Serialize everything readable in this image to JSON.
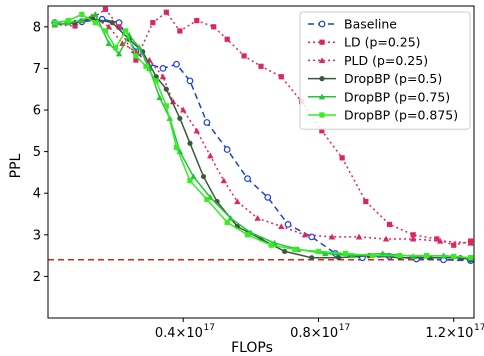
{
  "chart_data": {
    "type": "line",
    "title": "",
    "xlabel": "FLOPs",
    "ylabel": "PPL",
    "xlim": [
      0.0,
      1.26e+17
    ],
    "ylim": [
      1.0,
      8.5
    ],
    "xticks": [
      {
        "value": 4e+16,
        "mantissa": "0.4",
        "base": "×10",
        "exp": "17"
      },
      {
        "value": 8e+16,
        "mantissa": "0.8",
        "base": "×10",
        "exp": "17"
      },
      {
        "value": 1.2e+17,
        "mantissa": "1.2",
        "base": "×10",
        "exp": "17"
      }
    ],
    "yticks": [
      2,
      3,
      4,
      5,
      6,
      7,
      8
    ],
    "grid": false,
    "legend_position": "top-right",
    "reference_line": {
      "y": 2.4,
      "color": "#e02020",
      "style": "dashed"
    },
    "series": [
      {
        "name": "Baseline",
        "color": "#1a3de0",
        "dash": "6,4",
        "marker": "circle-open",
        "x": [
          2000000000000000.0,
          1e+16,
          1.6e+16,
          2.1e+16,
          2.6e+16,
          3e+16,
          3.4e+16,
          3.8e+16,
          4.2e+16,
          4.7e+16,
          5.3e+16,
          5.9e+16,
          6.5e+16,
          7.1e+16,
          7.8e+16,
          8.5e+16,
          9.3e+16,
          1.01e+17,
          1.09e+17,
          1.17e+17,
          1.25e+17
        ],
        "y": [
          8.1,
          8.12,
          8.18,
          8.1,
          7.4,
          7.1,
          7.0,
          7.1,
          6.7,
          5.7,
          5.05,
          4.35,
          3.9,
          3.25,
          2.95,
          2.55,
          2.45,
          2.48,
          2.42,
          2.4,
          2.38
        ]
      },
      {
        "name": "LD (p=0.25)",
        "color": "#e0245e",
        "dash": "2,3",
        "marker": "square",
        "x": [
          2000000000000000.0,
          8000000000000000.0,
          1.3e+16,
          1.7e+16,
          2.1e+16,
          2.6e+16,
          3.1e+16,
          3.5e+16,
          3.9e+16,
          4.4e+16,
          4.9e+16,
          5.3e+16,
          5.8e+16,
          6.3e+16,
          6.9e+16,
          7.5e+16,
          8.1e+16,
          8.7e+16,
          9.4e+16,
          1.01e+17,
          1.08e+17,
          1.15e+17,
          1.2e+17,
          1.25e+17
        ],
        "y": [
          8.05,
          8.02,
          8.2,
          8.42,
          8.0,
          7.2,
          8.1,
          8.35,
          7.9,
          8.15,
          8.0,
          7.7,
          7.3,
          7.05,
          6.8,
          6.2,
          5.5,
          4.85,
          3.8,
          3.25,
          3.0,
          2.9,
          2.75,
          2.85
        ]
      },
      {
        "name": "PLD (p=0.25)",
        "color": "#e0245e",
        "dash": "2,3",
        "marker": "triangle",
        "x": [
          2000000000000000.0,
          8000000000000000.0,
          1.3e+16,
          1.8e+16,
          2.2e+16,
          2.6e+16,
          3e+16,
          3.4e+16,
          3.7e+16,
          4e+16,
          4.4e+16,
          4.8e+16,
          5.2e+16,
          5.6e+16,
          6.2e+16,
          6.9e+16,
          7.6e+16,
          8.4e+16,
          9.2e+16,
          1e+17,
          1.08e+17,
          1.16e+17,
          1.25e+17
        ],
        "y": [
          8.05,
          8.1,
          8.25,
          8.0,
          7.6,
          7.4,
          7.2,
          6.8,
          6.2,
          6.0,
          5.5,
          4.9,
          4.3,
          3.8,
          3.4,
          3.2,
          3.0,
          2.95,
          2.95,
          2.9,
          2.9,
          2.85,
          2.8
        ]
      },
      {
        "name": "DropBP (p=0.5)",
        "color": "#3a5a3a",
        "dash": "",
        "marker": "circle",
        "x": [
          2000000000000000.0,
          8000000000000000.0,
          1.3e+16,
          1.9e+16,
          2.4e+16,
          2.8e+16,
          3.2e+16,
          3.5e+16,
          3.9e+16,
          4.2e+16,
          4.6e+16,
          5e+16,
          5.6e+16,
          6.3e+16,
          7e+16,
          7.8e+16,
          8.6e+16,
          9.5e+16,
          1.04e+17,
          1.13e+17,
          1.22e+17,
          1.25e+17
        ],
        "y": [
          8.05,
          8.1,
          8.2,
          8.1,
          7.7,
          7.4,
          6.8,
          6.5,
          5.8,
          5.2,
          4.4,
          3.8,
          3.2,
          2.9,
          2.6,
          2.45,
          2.45,
          2.5,
          2.45,
          2.45,
          2.45,
          2.4
        ]
      },
      {
        "name": "DropBP (p=0.75)",
        "color": "#22c53a",
        "dash": "",
        "marker": "triangle",
        "x": [
          2000000000000000.0,
          6000000000000000.0,
          1e+16,
          1.4e+16,
          1.8e+16,
          2.1e+16,
          2.4e+16,
          2.7e+16,
          3e+16,
          3.3e+16,
          3.6e+16,
          3.9e+16,
          4.3e+16,
          4.8e+16,
          5.4e+16,
          6e+16,
          6.7e+16,
          7.4e+16,
          8.2e+16,
          9e+16,
          9.9e+16,
          1.08e+17,
          1.17e+17,
          1.25e+17
        ],
        "y": [
          8.05,
          8.1,
          8.15,
          8.3,
          7.6,
          7.35,
          7.8,
          7.5,
          7.0,
          6.3,
          5.8,
          5.0,
          4.4,
          3.9,
          3.4,
          3.05,
          2.8,
          2.65,
          2.55,
          2.5,
          2.55,
          2.48,
          2.5,
          2.45
        ]
      },
      {
        "name": "DropBP (p=0.875)",
        "color": "#33ee22",
        "dash": "",
        "marker": "square",
        "x": [
          2000000000000000.0,
          6000000000000000.0,
          1e+16,
          1.4e+16,
          1.7e+16,
          2e+16,
          2.3e+16,
          2.6e+16,
          2.9e+16,
          3.2e+16,
          3.5e+16,
          3.8e+16,
          4.2e+16,
          4.7e+16,
          5.3e+16,
          5.9e+16,
          6.6e+16,
          7.3e+16,
          8e+16,
          8.8e+16,
          9.6e+16,
          1.04e+17,
          1.12e+17,
          1.2e+17,
          1.25e+17
        ],
        "y": [
          8.1,
          8.15,
          8.3,
          8.1,
          7.9,
          7.5,
          7.9,
          7.3,
          7.05,
          6.7,
          6.1,
          5.1,
          4.3,
          3.85,
          3.3,
          3.0,
          2.75,
          2.65,
          2.6,
          2.55,
          2.5,
          2.5,
          2.5,
          2.48,
          2.45
        ]
      }
    ]
  }
}
